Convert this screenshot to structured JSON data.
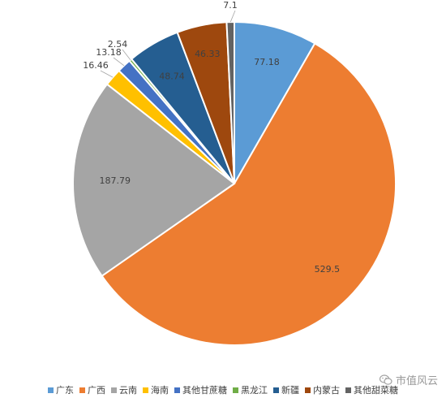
{
  "chart_data": {
    "type": "pie",
    "title": "",
    "categories": [
      "广东",
      "广西",
      "云南",
      "海南",
      "其他甘蔗糖",
      "黑龙江",
      "新疆",
      "内蒙古",
      "其他甜菜糖"
    ],
    "values": [
      77.18,
      529.5,
      187.79,
      16.46,
      13.18,
      2.54,
      48.74,
      46.33,
      7.1
    ],
    "data_labels": [
      "77.18",
      "529.5",
      "187.79",
      "16.46",
      "13.18",
      "2.54",
      "48.74",
      "46.33",
      "7.1"
    ],
    "colors": [
      "#5b9bd5",
      "#ed7d31",
      "#a5a5a5",
      "#ffc000",
      "#4472c4",
      "#70ad47",
      "#255e91",
      "#9e480e",
      "#636363"
    ],
    "legend_position": "bottom"
  },
  "watermark": {
    "text": "市值风云",
    "icon": "wechat-icon"
  }
}
